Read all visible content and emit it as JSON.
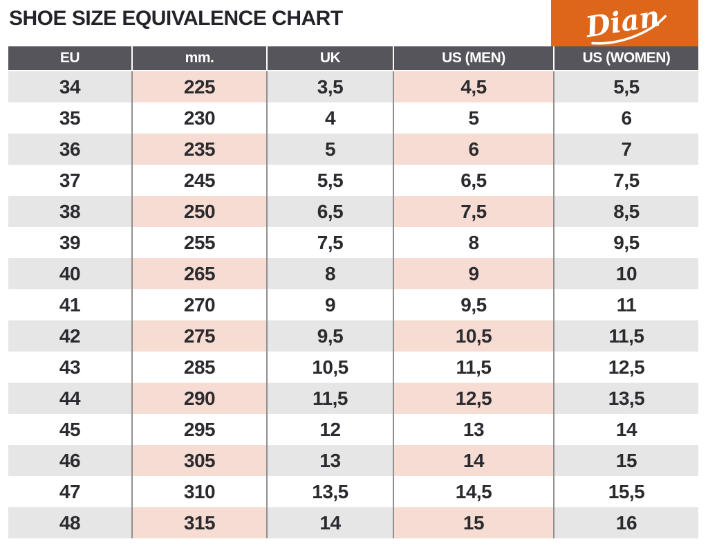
{
  "page": {
    "title": "SHOE SIZE EQUIVALENCE CHART",
    "brand": {
      "name": "Dian",
      "box_color": "#DD661A",
      "logo_text_color": "#FFFFFF"
    }
  },
  "chart_data": {
    "type": "table",
    "title": "SHOE SIZE EQUIVALENCE CHART",
    "columns": [
      "EU",
      "mm.",
      "UK",
      "US (MEN)",
      "US (WOMEN)"
    ],
    "rows": [
      [
        "34",
        "225",
        "3,5",
        "4,5",
        "5,5"
      ],
      [
        "35",
        "230",
        "4",
        "5",
        "6"
      ],
      [
        "36",
        "235",
        "5",
        "6",
        "7"
      ],
      [
        "37",
        "245",
        "5,5",
        "6,5",
        "7,5"
      ],
      [
        "38",
        "250",
        "6,5",
        "7,5",
        "8,5"
      ],
      [
        "39",
        "255",
        "7,5",
        "8",
        "9,5"
      ],
      [
        "40",
        "265",
        "8",
        "9",
        "10"
      ],
      [
        "41",
        "270",
        "9",
        "9,5",
        "11"
      ],
      [
        "42",
        "275",
        "9,5",
        "10,5",
        "11,5"
      ],
      [
        "43",
        "285",
        "10,5",
        "11,5",
        "12,5"
      ],
      [
        "44",
        "290",
        "11,5",
        "12,5",
        "13,5"
      ],
      [
        "45",
        "295",
        "12",
        "13",
        "14"
      ],
      [
        "46",
        "305",
        "13",
        "14",
        "15"
      ],
      [
        "47",
        "310",
        "13,5",
        "14,5",
        "15,5"
      ],
      [
        "48",
        "315",
        "14",
        "15",
        "16"
      ]
    ],
    "highlighted_columns": [
      "mm.",
      "US (MEN)"
    ],
    "striping": "rows alternate gray/white starting gray; highlighted columns show pink on gray rows",
    "legend_position": "none",
    "grid": "vertical dividers only"
  },
  "style": {
    "colors": {
      "title_text": "#23232A",
      "header_bg": "#55555B",
      "header_text": "#FFFFFF",
      "row_alt_bg": "#E6E6E6",
      "row_bg": "#FFFFFF",
      "highlight_bg": "#F6DCD2",
      "cell_text": "#2B2B2F",
      "divider": "#8F8F8F",
      "brand_orange": "#DD661A"
    }
  }
}
